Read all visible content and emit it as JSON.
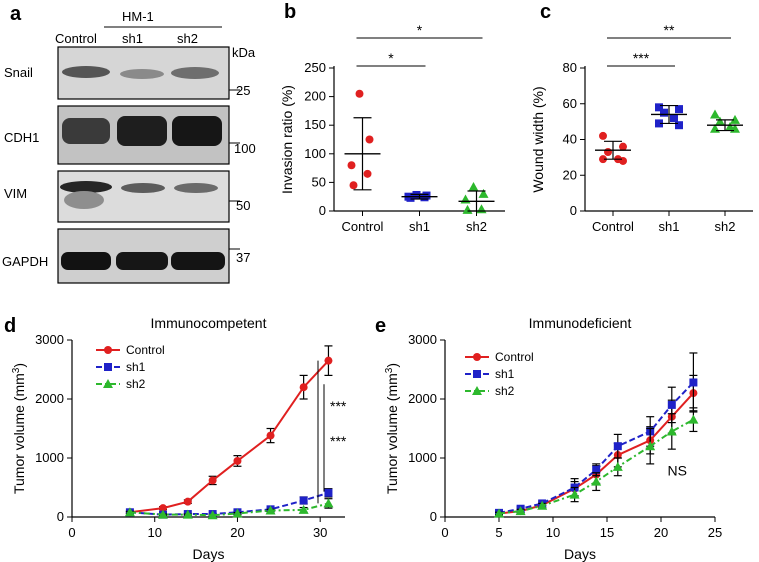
{
  "panel_labels": {
    "a": "a",
    "b": "b",
    "c": "c",
    "d": "d",
    "e": "e"
  },
  "blot": {
    "cell_line": "HM-1",
    "lanes": [
      "Control",
      "sh1",
      "sh2"
    ],
    "unit": "kDa",
    "proteins": [
      "Snail",
      "CDH1",
      "VIM",
      "GAPDH"
    ],
    "markers": [
      "25",
      "100",
      "50",
      "37"
    ]
  },
  "colors": {
    "Control": "#e02020",
    "sh1": "#1f22c8",
    "sh2": "#2db82d",
    "dot_b": "#e02020"
  },
  "chart_data": [
    {
      "id": "b",
      "type": "scatter",
      "categories": [
        "Control",
        "sh1",
        "sh2"
      ],
      "ylabel": "Invasion ratio (%)",
      "ylim": [
        0,
        250
      ],
      "yticks": [
        0,
        50,
        100,
        150,
        200,
        250
      ],
      "series": [
        {
          "category": "Control",
          "points": [
            205,
            125,
            80,
            65,
            45
          ],
          "mean": 100,
          "sd_low": 37,
          "sd_high": 163
        },
        {
          "category": "sh1",
          "points": [
            28,
            27,
            25,
            24,
            23
          ],
          "mean": 25,
          "sd_low": 21,
          "sd_high": 29
        },
        {
          "category": "sh2",
          "points": [
            42,
            30,
            20,
            3,
            2
          ],
          "mean": 17,
          "sd_low": 0,
          "sd_high": 35
        }
      ],
      "significance": [
        {
          "from": "Control",
          "to": "sh1",
          "label": "*"
        },
        {
          "from": "Control",
          "to": "sh2",
          "label": "*"
        }
      ]
    },
    {
      "id": "c",
      "type": "scatter",
      "categories": [
        "Control",
        "sh1",
        "sh2"
      ],
      "ylabel": "Wound width (%)",
      "ylim": [
        0,
        80
      ],
      "yticks": [
        0,
        20,
        40,
        60,
        80
      ],
      "series": [
        {
          "category": "Control",
          "points": [
            42,
            36,
            33,
            29,
            29,
            28
          ],
          "mean": 34,
          "sd_low": 29,
          "sd_high": 39
        },
        {
          "category": "sh1",
          "points": [
            58,
            57,
            55,
            52,
            49,
            48
          ],
          "mean": 54,
          "sd_low": 49,
          "sd_high": 59
        },
        {
          "category": "sh2",
          "points": [
            54,
            51,
            50,
            47,
            46,
            46
          ],
          "mean": 48,
          "sd_low": 45,
          "sd_high": 51
        }
      ],
      "significance": [
        {
          "from": "Control",
          "to": "sh1",
          "label": "***"
        },
        {
          "from": "Control",
          "to": "sh2",
          "label": "**"
        }
      ]
    },
    {
      "id": "d",
      "type": "line",
      "title": "Immunocompetent",
      "xlabel": "Days",
      "ylabel": "Tumor volume (mm",
      "ylabel_sup": "3",
      "ylabel_end": ")",
      "xlim": [
        0,
        33
      ],
      "ylim": [
        0,
        3000
      ],
      "xticks": [
        0,
        10,
        20,
        30
      ],
      "yticks": [
        0,
        1000,
        2000,
        3000
      ],
      "legend": "top-left",
      "series": [
        {
          "name": "Control",
          "x": [
            7,
            11,
            14,
            17,
            20,
            24,
            28,
            31
          ],
          "y": [
            80,
            150,
            260,
            620,
            950,
            1380,
            2200,
            2650
          ],
          "err": [
            20,
            25,
            30,
            70,
            90,
            120,
            200,
            250
          ]
        },
        {
          "name": "sh1",
          "x": [
            7,
            11,
            14,
            17,
            20,
            24,
            28,
            31
          ],
          "y": [
            80,
            40,
            50,
            50,
            80,
            130,
            280,
            410
          ],
          "err": [
            15,
            10,
            10,
            10,
            15,
            25,
            60,
            70
          ]
        },
        {
          "name": "sh2",
          "x": [
            7,
            11,
            14,
            17,
            20,
            24,
            28,
            31
          ],
          "y": [
            80,
            40,
            40,
            30,
            60,
            110,
            120,
            230
          ],
          "err": [
            15,
            10,
            10,
            10,
            15,
            20,
            40,
            80
          ]
        }
      ],
      "significance": [
        "***",
        "***"
      ]
    },
    {
      "id": "e",
      "type": "line",
      "title": "Immunodeficient",
      "xlabel": "Days",
      "ylabel": "Tumor volume (mm",
      "ylabel_sup": "3",
      "ylabel_end": ")",
      "xlim": [
        0,
        25
      ],
      "ylim": [
        0,
        3000
      ],
      "xticks": [
        0,
        5,
        10,
        15,
        20,
        25
      ],
      "yticks": [
        0,
        1000,
        2000,
        3000
      ],
      "legend": "top-left",
      "series": [
        {
          "name": "Control",
          "x": [
            5,
            7,
            9,
            12,
            14,
            16,
            19,
            21,
            23
          ],
          "y": [
            60,
            100,
            200,
            480,
            720,
            1050,
            1300,
            1700,
            2100
          ],
          "err": [
            20,
            30,
            40,
            120,
            150,
            200,
            230,
            280,
            300
          ]
        },
        {
          "name": "sh1",
          "x": [
            5,
            7,
            9,
            12,
            14,
            16,
            19,
            21,
            23
          ],
          "y": [
            70,
            140,
            230,
            500,
            800,
            1200,
            1450,
            1900,
            2280
          ],
          "err": [
            20,
            30,
            40,
            150,
            100,
            200,
            250,
            300,
            500
          ]
        },
        {
          "name": "sh2",
          "x": [
            5,
            7,
            9,
            12,
            14,
            16,
            19,
            21,
            23
          ],
          "y": [
            60,
            100,
            190,
            380,
            600,
            850,
            1200,
            1450,
            1650
          ],
          "err": [
            20,
            30,
            40,
            120,
            150,
            150,
            300,
            300,
            200
          ]
        }
      ],
      "annotation": "NS"
    }
  ]
}
